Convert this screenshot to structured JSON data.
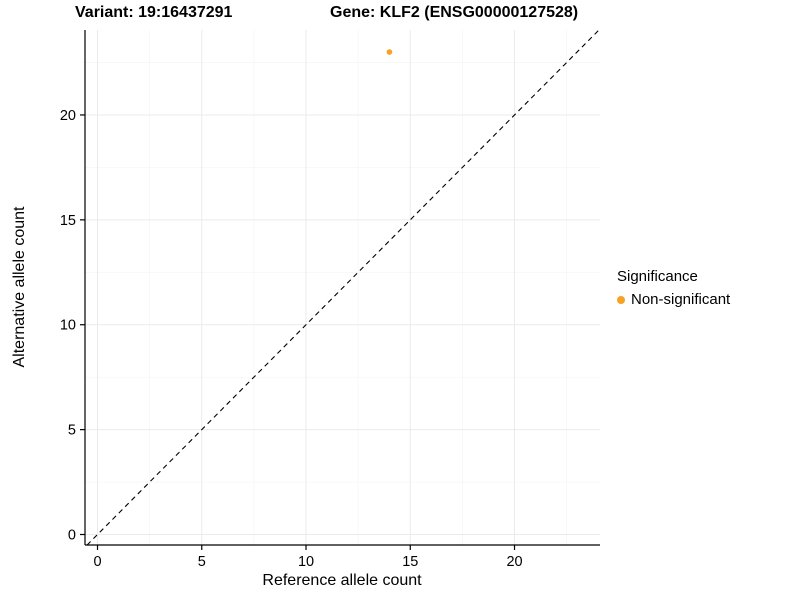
{
  "titles": {
    "variant": "Variant: 19:16437291",
    "gene": "Gene: KLF2 (ENSG00000127528)"
  },
  "axes": {
    "x_label": "Reference allele count",
    "y_label": "Alternative allele count"
  },
  "legend": {
    "title": "Significance",
    "items": [
      {
        "label": "Non-significant",
        "color": "#F8A125"
      }
    ]
  },
  "chart_data": {
    "type": "scatter",
    "title": "Variant: 19:16437291    Gene: KLF2 (ENSG00000127528)",
    "xlabel": "Reference allele count",
    "ylabel": "Alternative allele count",
    "xlim": [
      -0.6,
      24.1
    ],
    "ylim": [
      -0.5,
      24.05
    ],
    "xticks": [
      0,
      5,
      10,
      15,
      20
    ],
    "yticks": [
      0,
      5,
      10,
      15,
      20
    ],
    "grid": true,
    "legend_position": "right",
    "series": [
      {
        "name": "Non-significant",
        "color": "#F8A125",
        "points": [
          {
            "x": 14,
            "y": 23
          }
        ]
      }
    ],
    "reference_line": {
      "type": "identity",
      "slope": 1,
      "intercept": 0,
      "style": "dashed",
      "color": "#000000"
    },
    "colors": {
      "major_grid": "#ebebeb",
      "minor_grid": "#f5f5f5",
      "axis_line": "#000000",
      "background": "#ffffff"
    }
  }
}
